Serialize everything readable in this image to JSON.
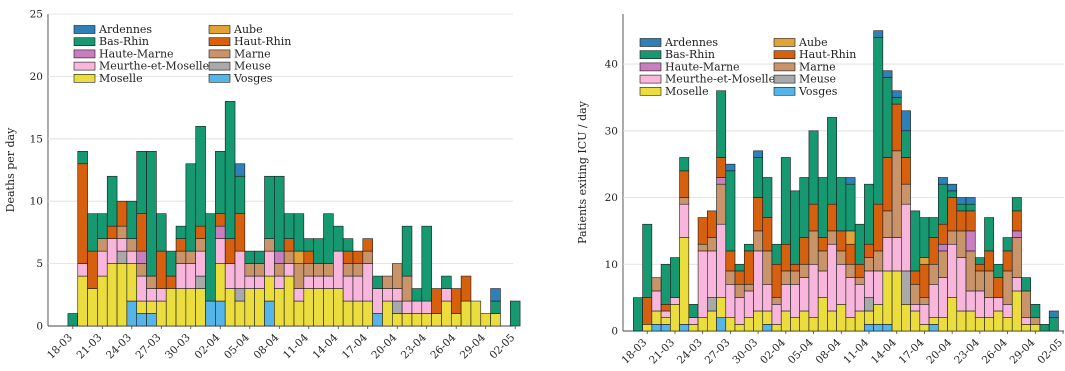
{
  "colors": {
    "Ardennes": "#2f7fb8",
    "Aube": "#e3a236",
    "Bas-Rhin": "#169870",
    "Haut-Rhin": "#d6600d",
    "Haute-Marne": "#c97ec0",
    "Marne": "#c9946a",
    "Meurthe-et-Moselle": "#f8b6dc",
    "Meuse": "#a9a9a9",
    "Moselle": "#ecdd3e",
    "Vosges": "#55b4e8"
  },
  "chart_data": [
    {
      "type": "bar",
      "stacked": true,
      "ylabel": "Deaths per day",
      "ylim": [
        0,
        25
      ],
      "yticks": [
        0,
        5,
        10,
        15,
        20,
        25
      ],
      "grid": "horizontal",
      "legend": {
        "placement": "top-left",
        "entries": [
          "Ardennes",
          "Aube",
          "Bas-Rhin",
          "Haut-Rhin",
          "Haute-Marne",
          "Marne",
          "Meurthe-et-Moselle",
          "Meuse",
          "Moselle",
          "Vosges"
        ]
      },
      "xticks": [
        "18-03",
        "21-03",
        "24-03",
        "27-03",
        "30-03",
        "02-04",
        "05-04",
        "08-04",
        "11-04",
        "14-04",
        "17-04",
        "20-04",
        "23-04",
        "26-04",
        "29-04",
        "02-05"
      ],
      "x": [
        "17-03",
        "18-03",
        "19-03",
        "20-03",
        "21-03",
        "22-03",
        "23-03",
        "24-03",
        "25-03",
        "26-03",
        "27-03",
        "28-03",
        "29-03",
        "30-03",
        "31-03",
        "01-04",
        "02-04",
        "03-04",
        "04-04",
        "05-04",
        "06-04",
        "07-04",
        "08-04",
        "09-04",
        "10-04",
        "11-04",
        "12-04",
        "13-04",
        "14-04",
        "15-04",
        "16-04",
        "17-04",
        "18-04",
        "19-04",
        "20-04",
        "21-04",
        "22-04",
        "23-04",
        "24-04",
        "25-04",
        "26-04",
        "27-04",
        "28-04",
        "29-04",
        "30-04",
        "01-05",
        "02-05"
      ],
      "series": [
        {
          "name": "Vosges",
          "values": [
            0,
            0,
            0,
            0,
            0,
            0,
            0,
            2,
            1,
            1,
            0,
            0,
            0,
            0,
            0,
            2,
            2,
            0,
            0,
            0,
            0,
            2,
            0,
            0,
            0,
            0,
            0,
            0,
            0,
            0,
            0,
            0,
            1,
            0,
            0,
            0,
            0,
            0,
            0,
            0,
            0,
            0,
            0,
            0,
            0,
            0,
            0
          ]
        },
        {
          "name": "Moselle",
          "values": [
            0,
            0,
            4,
            3,
            4,
            5,
            5,
            3,
            1,
            1,
            2,
            3,
            3,
            3,
            3,
            0,
            3,
            3,
            2,
            3,
            3,
            2,
            3,
            4,
            2,
            3,
            3,
            3,
            3,
            2,
            2,
            2,
            0,
            2,
            1,
            1,
            1,
            1,
            1,
            2,
            1,
            2,
            2,
            1,
            1,
            0,
            0
          ]
        },
        {
          "name": "Meuse",
          "values": [
            0,
            0,
            0,
            0,
            0,
            0,
            1,
            0,
            0,
            0,
            0,
            0,
            0,
            0,
            1,
            0,
            0,
            0,
            1,
            0,
            0,
            0,
            0,
            0,
            0,
            0,
            0,
            0,
            0,
            0,
            0,
            0,
            0,
            0,
            1,
            0,
            0,
            0,
            0,
            0,
            0,
            0,
            0,
            0,
            0,
            0,
            0
          ]
        },
        {
          "name": "Meurthe-et-Moselle",
          "values": [
            0,
            0,
            1,
            0,
            2,
            2,
            1,
            1,
            2,
            1,
            1,
            0,
            2,
            2,
            2,
            0,
            2,
            2,
            3,
            1,
            1,
            2,
            1,
            1,
            1,
            1,
            1,
            1,
            3,
            2,
            2,
            3,
            2,
            1,
            1,
            1,
            1,
            1,
            0,
            1,
            0,
            0,
            0,
            0,
            0,
            0,
            0
          ]
        },
        {
          "name": "Marne",
          "values": [
            0,
            0,
            0,
            0,
            1,
            0,
            1,
            1,
            1,
            1,
            0,
            0,
            1,
            1,
            1,
            0,
            0,
            0,
            0,
            1,
            1,
            1,
            1,
            1,
            2,
            1,
            1,
            1,
            0,
            1,
            1,
            1,
            0,
            1,
            2,
            2,
            0,
            0,
            0,
            0,
            0,
            0,
            0,
            0,
            0,
            0,
            0
          ]
        },
        {
          "name": "Haute-Marne",
          "values": [
            0,
            0,
            0,
            0,
            0,
            0,
            0,
            0,
            1,
            0,
            0,
            0,
            0,
            0,
            0,
            0,
            1,
            0,
            0,
            0,
            0,
            0,
            1,
            0,
            0,
            0,
            0,
            0,
            0,
            0,
            0,
            0,
            0,
            0,
            0,
            0,
            0,
            0,
            0,
            0,
            0,
            0,
            0,
            0,
            0,
            0,
            0
          ]
        },
        {
          "name": "Haut-Rhin",
          "values": [
            0,
            0,
            8,
            3,
            0,
            1,
            2,
            0,
            3,
            0,
            3,
            1,
            1,
            0,
            1,
            0,
            1,
            2,
            3,
            0,
            0,
            0,
            0,
            1,
            0,
            1,
            0,
            0,
            0,
            1,
            1,
            1,
            0,
            0,
            0,
            0,
            0,
            0,
            2,
            0,
            2,
            2,
            0,
            0,
            0,
            0,
            0
          ]
        },
        {
          "name": "Aube",
          "values": [
            0,
            0,
            0,
            0,
            0,
            0,
            0,
            0,
            0,
            0,
            0,
            0,
            0,
            0,
            0,
            0,
            0,
            0,
            0,
            0,
            0,
            0,
            0,
            0,
            1,
            0,
            0,
            0,
            0,
            0,
            0,
            0,
            0,
            0,
            0,
            0,
            0,
            0,
            0,
            0,
            0,
            0,
            0,
            0,
            0,
            0,
            0
          ]
        },
        {
          "name": "Bas-Rhin",
          "values": [
            0,
            1,
            1,
            3,
            2,
            4,
            0,
            3,
            5,
            10,
            3,
            2,
            1,
            7,
            8,
            7,
            5,
            11,
            3,
            1,
            1,
            5,
            6,
            2,
            3,
            1,
            2,
            4,
            2,
            1,
            0,
            0,
            1,
            0,
            0,
            4,
            1,
            6,
            0,
            1,
            0,
            0,
            0,
            0,
            1,
            0,
            2
          ]
        },
        {
          "name": "Ardennes",
          "values": [
            0,
            0,
            0,
            0,
            0,
            0,
            0,
            0,
            0,
            0,
            0,
            0,
            0,
            0,
            0,
            0,
            0,
            0,
            1,
            0,
            0,
            0,
            0,
            0,
            0,
            0,
            0,
            0,
            0,
            0,
            0,
            0,
            0,
            0,
            0,
            0,
            0,
            0,
            0,
            0,
            0,
            0,
            0,
            0,
            1,
            0,
            0
          ]
        }
      ]
    },
    {
      "type": "bar",
      "stacked": true,
      "ylabel": "Patients exiting ICU / day",
      "ylim": [
        0,
        47.5
      ],
      "yticks": [
        0,
        10,
        20,
        30,
        40
      ],
      "grid": "horizontal",
      "legend": {
        "placement": "top-left",
        "entries": [
          "Ardennes",
          "Aube",
          "Bas-Rhin",
          "Haut-Rhin",
          "Haute-Marne",
          "Marne",
          "Meurthe-et-Moselle",
          "Meuse",
          "Moselle",
          "Vosges"
        ]
      },
      "xticks": [
        "18-03",
        "21-03",
        "24-03",
        "27-03",
        "30-03",
        "02-04",
        "05-04",
        "08-04",
        "11-04",
        "14-04",
        "17-04",
        "20-04",
        "23-04",
        "26-04",
        "29-04",
        "02-05"
      ],
      "x": [
        "17-03",
        "18-03",
        "19-03",
        "20-03",
        "21-03",
        "22-03",
        "23-03",
        "24-03",
        "25-03",
        "26-03",
        "27-03",
        "28-03",
        "29-03",
        "30-03",
        "31-03",
        "01-04",
        "02-04",
        "03-04",
        "04-04",
        "05-04",
        "06-04",
        "07-04",
        "08-04",
        "09-04",
        "10-04",
        "11-04",
        "12-04",
        "13-04",
        "14-04",
        "15-04",
        "16-04",
        "17-04",
        "18-04",
        "19-04",
        "20-04",
        "21-04",
        "22-04",
        "23-04",
        "24-04",
        "25-04",
        "26-04",
        "27-04",
        "28-04",
        "29-04",
        "30-04",
        "01-05",
        "02-05"
      ],
      "series": [
        {
          "name": "Vosges",
          "values": [
            0,
            0,
            1,
            1,
            0,
            1,
            0,
            0,
            0,
            2,
            0,
            0,
            0,
            0,
            1,
            0,
            0,
            0,
            0,
            0,
            0,
            0,
            0,
            0,
            0,
            1,
            1,
            1,
            0,
            0,
            0,
            0,
            1,
            0,
            0,
            0,
            0,
            0,
            0,
            0,
            0,
            0,
            0,
            0,
            0,
            0,
            0
          ]
        },
        {
          "name": "Moselle",
          "values": [
            0,
            1,
            2,
            1,
            4,
            13,
            1,
            2,
            3,
            3,
            2,
            1,
            2,
            3,
            2,
            1,
            3,
            2,
            3,
            2,
            5,
            3,
            4,
            2,
            3,
            2,
            3,
            8,
            9,
            4,
            3,
            1,
            1,
            2,
            5,
            3,
            3,
            2,
            2,
            3,
            2,
            6,
            1,
            1,
            0,
            0,
            0
          ]
        },
        {
          "name": "Meuse",
          "values": [
            0,
            0,
            0,
            0,
            0,
            0,
            0,
            0,
            2,
            0,
            0,
            0,
            0,
            0,
            0,
            0,
            0,
            0,
            0,
            0,
            0,
            0,
            0,
            0,
            0,
            2,
            0,
            0,
            0,
            5,
            0,
            0,
            0,
            0,
            0,
            0,
            0,
            0,
            0,
            0,
            0,
            0,
            0,
            0,
            0,
            0,
            0
          ]
        },
        {
          "name": "Meurthe-et-Moselle",
          "values": [
            0,
            0,
            3,
            1,
            1,
            5,
            1,
            10,
            7,
            11,
            5,
            4,
            4,
            9,
            4,
            3,
            4,
            5,
            5,
            8,
            4,
            10,
            6,
            6,
            4,
            4,
            5,
            5,
            5,
            10,
            1,
            3,
            5,
            6,
            8,
            8,
            3,
            4,
            3,
            2,
            2,
            2,
            1,
            0,
            0,
            0,
            0
          ]
        },
        {
          "name": "Marne",
          "values": [
            0,
            0,
            2,
            0,
            0,
            1,
            0,
            1,
            2,
            6,
            2,
            2,
            1,
            3,
            5,
            1,
            2,
            2,
            2,
            5,
            3,
            2,
            2,
            2,
            1,
            2,
            3,
            4,
            13,
            3,
            3,
            1,
            3,
            4,
            2,
            4,
            6,
            3,
            4,
            0,
            5,
            6,
            4,
            1,
            0,
            0,
            0
          ]
        },
        {
          "name": "Haute-Marne",
          "values": [
            0,
            0,
            0,
            0,
            0,
            0,
            0,
            0,
            0,
            1,
            0,
            0,
            0,
            0,
            0,
            0,
            0,
            0,
            0,
            0,
            0,
            0,
            0,
            0,
            0,
            0,
            0,
            0,
            0,
            0,
            0,
            0,
            0,
            1,
            0,
            0,
            3,
            0,
            0,
            0,
            0,
            1,
            0,
            0,
            0,
            0,
            0
          ]
        },
        {
          "name": "Haut-Rhin",
          "values": [
            0,
            4,
            0,
            1,
            0,
            4,
            0,
            4,
            4,
            3,
            3,
            2,
            5,
            5,
            5,
            5,
            4,
            1,
            4,
            4,
            2,
            4,
            3,
            3,
            2,
            2,
            7,
            8,
            7,
            4,
            2,
            5,
            4,
            3,
            5,
            3,
            3,
            1,
            3,
            3,
            3,
            3,
            0,
            0,
            0,
            0,
            0
          ]
        },
        {
          "name": "Aube",
          "values": [
            0,
            0,
            0,
            0,
            0,
            0,
            0,
            0,
            0,
            0,
            0,
            0,
            0,
            0,
            0,
            0,
            0,
            0,
            0,
            0,
            0,
            0,
            0,
            2,
            0,
            0,
            0,
            0,
            0,
            0,
            0,
            1,
            0,
            0,
            0,
            0,
            0,
            0,
            0,
            0,
            0,
            0,
            0,
            0,
            0,
            0,
            0
          ]
        },
        {
          "name": "Bas-Rhin",
          "values": [
            5,
            11,
            0,
            6,
            6,
            2,
            2,
            0,
            0,
            10,
            12,
            1,
            1,
            6,
            6,
            3,
            13,
            11,
            9,
            11,
            9,
            13,
            8,
            7,
            6,
            9,
            25,
            12,
            1,
            4,
            9,
            6,
            3,
            6,
            1,
            1,
            1,
            1,
            5,
            2,
            2,
            2,
            2,
            2,
            1,
            2,
            0
          ]
        },
        {
          "name": "Ardennes",
          "values": [
            0,
            0,
            0,
            0,
            0,
            0,
            0,
            0,
            0,
            0,
            1,
            0,
            0,
            1,
            0,
            0,
            0,
            0,
            0,
            0,
            0,
            0,
            0,
            1,
            0,
            0,
            1,
            1,
            1,
            3,
            0,
            0,
            0,
            1,
            1,
            1,
            1,
            0,
            0,
            0,
            0,
            0,
            0,
            0,
            0,
            1,
            0
          ]
        }
      ]
    }
  ]
}
